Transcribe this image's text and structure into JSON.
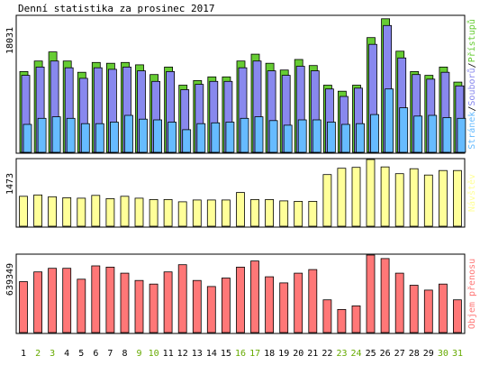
{
  "chart_data": {
    "type": "bar",
    "title": "Denní statistika za prosinec 2017",
    "categories": [
      "1",
      "2",
      "3",
      "4",
      "5",
      "6",
      "7",
      "8",
      "9",
      "10",
      "11",
      "12",
      "13",
      "14",
      "15",
      "16",
      "17",
      "18",
      "19",
      "20",
      "21",
      "22",
      "23",
      "24",
      "25",
      "26",
      "27",
      "28",
      "29",
      "30",
      "31"
    ],
    "weekend_days": [
      "2",
      "3",
      "9",
      "10",
      "16",
      "17",
      "23",
      "24",
      "30",
      "31"
    ],
    "colors": {
      "weekday_label": "#000000",
      "weekend_label": "#66aa00",
      "hits": "#66cc33",
      "files": "#8888ee",
      "pages": "#66bbff",
      "visits": "#ffff99",
      "traffic": "#ff7777",
      "frame": "#000000",
      "bar_outline": "#000000"
    },
    "panels": [
      {
        "id": "hits-files-pages",
        "ylabel_max": "18031",
        "ylim": [
          0,
          18031
        ],
        "legend": [
          {
            "text": "Stránek",
            "color": "#66bbff"
          },
          {
            "text": "/",
            "color": "#000000"
          },
          {
            "text": "Souborů",
            "color": "#8888ee"
          },
          {
            "text": "/",
            "color": "#000000"
          },
          {
            "text": "Přístupů",
            "color": "#66cc33"
          }
        ],
        "series": [
          {
            "key": "hits",
            "values": [
              10700,
              12100,
              13300,
              12100,
              10600,
              11900,
              11800,
              11900,
              11600,
              10300,
              11300,
              8900,
              9500,
              10000,
              10000,
              12100,
              13000,
              11800,
              10900,
              12300,
              11500,
              8900,
              8100,
              8900,
              15200,
              17700,
              13400,
              10700,
              10200,
              11300,
              9300
            ]
          },
          {
            "key": "files",
            "values": [
              10200,
              11300,
              12100,
              11200,
              9800,
              11200,
              11000,
              11300,
              10800,
              9400,
              10700,
              8300,
              9000,
              9400,
              9400,
              11200,
              12100,
              10800,
              10200,
              11400,
              10800,
              8400,
              7400,
              8500,
              14300,
              16800,
              12500,
              10300,
              9700,
              10600,
              8800
            ]
          },
          {
            "key": "pages",
            "values": [
              3700,
              4500,
              4700,
              4500,
              3800,
              3800,
              4000,
              4900,
              4400,
              4300,
              4000,
              3000,
              3800,
              3900,
              4000,
              4500,
              4700,
              4200,
              3600,
              4300,
              4300,
              4000,
              3700,
              3800,
              5000,
              8400,
              5900,
              4800,
              4900,
              4600,
              4500
            ]
          }
        ]
      },
      {
        "id": "visits",
        "ylabel_max": "1473",
        "ylim": [
          0,
          1473
        ],
        "legend": [
          {
            "text": "Návštěv",
            "color": "#ffff99"
          }
        ],
        "series": [
          {
            "key": "visits",
            "values": [
              660,
              690,
              650,
              630,
              620,
              680,
              610,
              660,
              620,
              590,
              590,
              540,
              580,
              580,
              580,
              745,
              590,
              590,
              560,
              550,
              550,
              1140,
              1280,
              1300,
              1473,
              1310,
              1160,
              1270,
              1130,
              1230,
              1230
            ]
          }
        ]
      },
      {
        "id": "traffic",
        "ylabel_max": "639349",
        "ylim": [
          0,
          639349
        ],
        "legend": [
          {
            "text": "Objem přenosu",
            "color": "#ff7777"
          }
        ],
        "series": [
          {
            "key": "traffic",
            "values": [
              420000,
              500000,
              530000,
              530000,
              440000,
              550000,
              540000,
              490000,
              430000,
              400000,
              500000,
              560000,
              430000,
              380000,
              450000,
              540000,
              590000,
              460000,
              410000,
              490000,
              520000,
              270000,
              190000,
              220000,
              639349,
              610000,
              490000,
              390000,
              350000,
              400000,
              270000
            ]
          }
        ]
      }
    ]
  }
}
